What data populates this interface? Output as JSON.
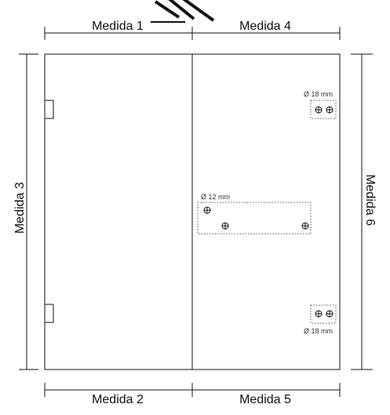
{
  "dimensions": {
    "top_left": "Medida 1",
    "top_right": "Medida 4",
    "bottom_left": "Medida 2",
    "bottom_right": "Medida 5",
    "left": "Medida 3",
    "right": "Medida 6"
  },
  "holes": {
    "top_group_label": "Ø 18 mm",
    "middle_group_label": "Ø 12 mm",
    "bottom_group_label": "Ø 18 mm"
  },
  "colors": {
    "line": "#111111",
    "dotted": "#555555"
  },
  "icons": {
    "hole_marker": "crosshair-circle-icon",
    "hinge": "hinge-tab"
  }
}
